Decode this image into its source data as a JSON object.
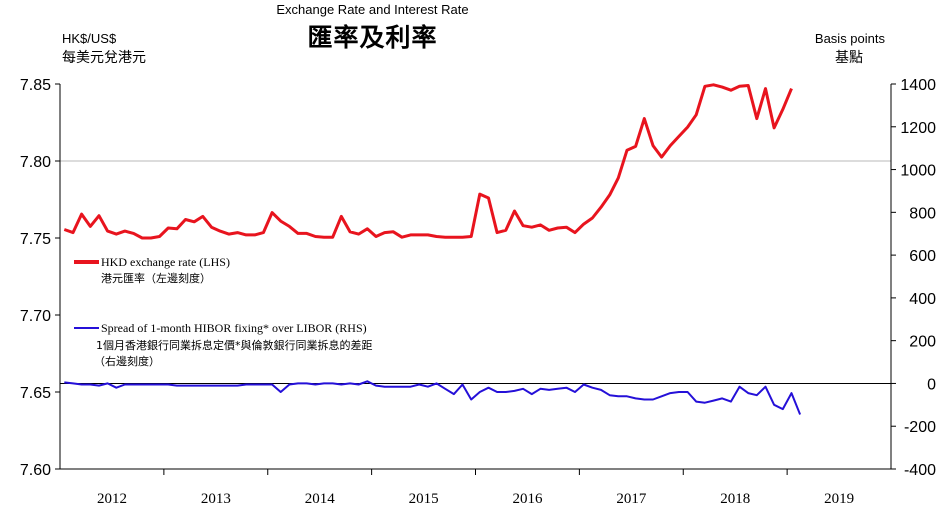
{
  "chart_data": {
    "type": "line",
    "title": "Exchange Rate and Interest Rate",
    "title_zh": "匯率及利率",
    "left_axis": {
      "label": "HK$/US$",
      "label_zh": "每美元兌港元",
      "range": [
        7.6,
        7.85
      ],
      "ticks": [
        "7.85",
        "7.80",
        "7.75",
        "7.70",
        "7.65",
        "7.60"
      ]
    },
    "right_axis": {
      "label": "Basis points",
      "label_zh": "基點",
      "range": [
        -400,
        1400
      ],
      "ticks": [
        "1400",
        "1200",
        "1000",
        "800",
        "600",
        "400",
        "200",
        "0",
        "-200",
        "-400"
      ]
    },
    "x_categories": [
      "2012",
      "2013",
      "2014",
      "2015",
      "2016",
      "2017",
      "2018",
      "2019"
    ],
    "gridlines": "horizontal at 7.80 and RHS zero",
    "legend_placement": "left-middle",
    "series": [
      {
        "name": "HKD exchange rate (LHS)",
        "name_zh": "港元匯率（左邊刻度）",
        "axis": "left",
        "color": "#e8141e",
        "start": "2012-01",
        "values": [
          7.7555,
          7.7535,
          7.7655,
          7.7575,
          7.7645,
          7.7545,
          7.7525,
          7.7545,
          7.753,
          7.75,
          7.75,
          7.751,
          7.7565,
          7.756,
          7.762,
          7.7605,
          7.764,
          7.757,
          7.7545,
          7.7525,
          7.7535,
          7.752,
          7.752,
          7.7535,
          7.7665,
          7.761,
          7.7575,
          7.753,
          7.753,
          7.751,
          7.7505,
          7.7505,
          7.764,
          7.754,
          7.7525,
          7.756,
          7.751,
          7.7535,
          7.754,
          7.7505,
          7.752,
          7.752,
          7.752,
          7.751,
          7.7505,
          7.7505,
          7.7505,
          7.751,
          7.7785,
          7.776,
          7.7535,
          7.755,
          7.7675,
          7.758,
          7.757,
          7.7585,
          7.755,
          7.7565,
          7.757,
          7.7535,
          7.759,
          7.763,
          7.77,
          7.778,
          7.789,
          7.807,
          7.8095,
          7.8275,
          7.81,
          7.8025,
          7.81,
          7.816,
          7.822,
          7.83,
          7.8485,
          7.8495,
          7.848,
          7.846,
          7.8485,
          7.849,
          7.8275,
          7.847,
          7.8215,
          7.8335,
          7.847
        ]
      },
      {
        "name": "Spread of 1-month HIBOR fixing* over LIBOR (RHS)",
        "name_zh": "1個月香港銀行同業拆息定價*與倫敦銀行同業拆息的差距",
        "name_zh_2": "（右邊刻度）",
        "axis": "right",
        "color": "#2510d8",
        "start": "2012-01",
        "values": [
          5,
          0,
          -5,
          -5,
          -10,
          0,
          -20,
          -5,
          -5,
          -5,
          -5,
          -5,
          -5,
          -10,
          -10,
          -10,
          -10,
          -10,
          -10,
          -10,
          -10,
          -5,
          -5,
          -5,
          -5,
          -40,
          -5,
          0,
          0,
          -5,
          0,
          0,
          -5,
          0,
          -5,
          10,
          -10,
          -15,
          -15,
          -15,
          -15,
          -5,
          -15,
          0,
          -25,
          -50,
          -5,
          -75,
          -40,
          -20,
          -40,
          -40,
          -35,
          -25,
          -50,
          -25,
          -30,
          -25,
          -20,
          -40,
          -5,
          -20,
          -30,
          -55,
          -60,
          -60,
          -70,
          -75,
          -75,
          -60,
          -45,
          -40,
          -40,
          -85,
          -90,
          -80,
          -70,
          -85,
          -15,
          -45,
          -55,
          -15,
          -100,
          -120,
          -45,
          -145
        ]
      }
    ]
  }
}
